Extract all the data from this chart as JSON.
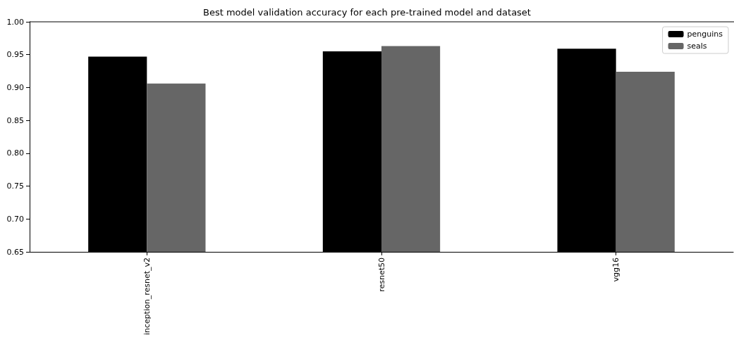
{
  "chart_data": {
    "type": "bar",
    "title": "Best model validation accuracy for each pre-trained model and dataset",
    "categories": [
      "inception_resnet_v2",
      "resnet50",
      "vgg16"
    ],
    "series": [
      {
        "name": "penguins",
        "color": "#000000",
        "values": [
          0.947,
          0.955,
          0.959
        ]
      },
      {
        "name": "seals",
        "color": "#666666",
        "values": [
          0.906,
          0.963,
          0.924
        ]
      }
    ],
    "ylim": [
      0.65,
      1.0
    ],
    "yticks": [
      0.65,
      {
        "value": 0.7,
        "label": "0.70"
      },
      0.75,
      {
        "value": 0.8,
        "label": "0.80"
      },
      0.85,
      {
        "value": 0.9,
        "label": "0.90"
      },
      0.95,
      {
        "value": 1.0,
        "label": "1.00"
      }
    ],
    "grid": false,
    "legend": "top right"
  }
}
